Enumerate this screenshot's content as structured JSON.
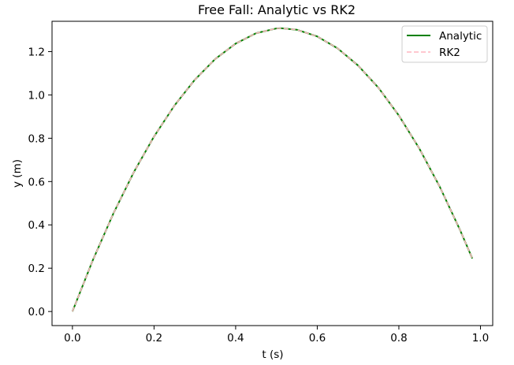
{
  "chart_data": {
    "type": "line",
    "title": "Free Fall: Analytic vs RK2",
    "xlabel": "t (s)",
    "ylabel": "y (m)",
    "xlim": [
      -0.05,
      1.03
    ],
    "ylim": [
      -0.065,
      1.34
    ],
    "xticks": [
      0.0,
      0.2,
      0.4,
      0.6,
      0.8,
      1.0
    ],
    "xtick_labels": [
      "0.0",
      "0.2",
      "0.4",
      "0.6",
      "0.8",
      "1.0"
    ],
    "yticks": [
      0.0,
      0.2,
      0.4,
      0.6,
      0.8,
      1.0,
      1.2
    ],
    "ytick_labels": [
      "0.0",
      "0.2",
      "0.4",
      "0.6",
      "0.8",
      "1.0",
      "1.2"
    ],
    "grid": false,
    "legend": "top-right",
    "series": [
      {
        "name": "Analytic",
        "color": "#008000",
        "style": "solid",
        "x": [
          0.0,
          0.05,
          0.1,
          0.15,
          0.2,
          0.25,
          0.3,
          0.35,
          0.4,
          0.45,
          0.5,
          0.51,
          0.55,
          0.6,
          0.65,
          0.7,
          0.75,
          0.8,
          0.85,
          0.9,
          0.95,
          0.98
        ],
        "y": [
          0.0,
          0.237,
          0.451,
          0.642,
          0.808,
          0.951,
          1.07,
          1.166,
          1.237,
          1.285,
          1.307,
          1.308,
          1.301,
          1.27,
          1.215,
          1.136,
          1.033,
          0.905,
          0.753,
          0.577,
          0.376,
          0.245
        ]
      },
      {
        "name": "RK2",
        "color": "#ffb6c1",
        "style": "dashed",
        "x": [
          0.0,
          0.05,
          0.1,
          0.15,
          0.2,
          0.25,
          0.3,
          0.35,
          0.4,
          0.45,
          0.5,
          0.51,
          0.55,
          0.6,
          0.65,
          0.7,
          0.75,
          0.8,
          0.85,
          0.9,
          0.95,
          0.98
        ],
        "y": [
          0.0,
          0.237,
          0.451,
          0.642,
          0.808,
          0.951,
          1.07,
          1.166,
          1.237,
          1.285,
          1.307,
          1.308,
          1.301,
          1.27,
          1.215,
          1.136,
          1.033,
          0.905,
          0.753,
          0.577,
          0.376,
          0.245
        ]
      }
    ]
  }
}
